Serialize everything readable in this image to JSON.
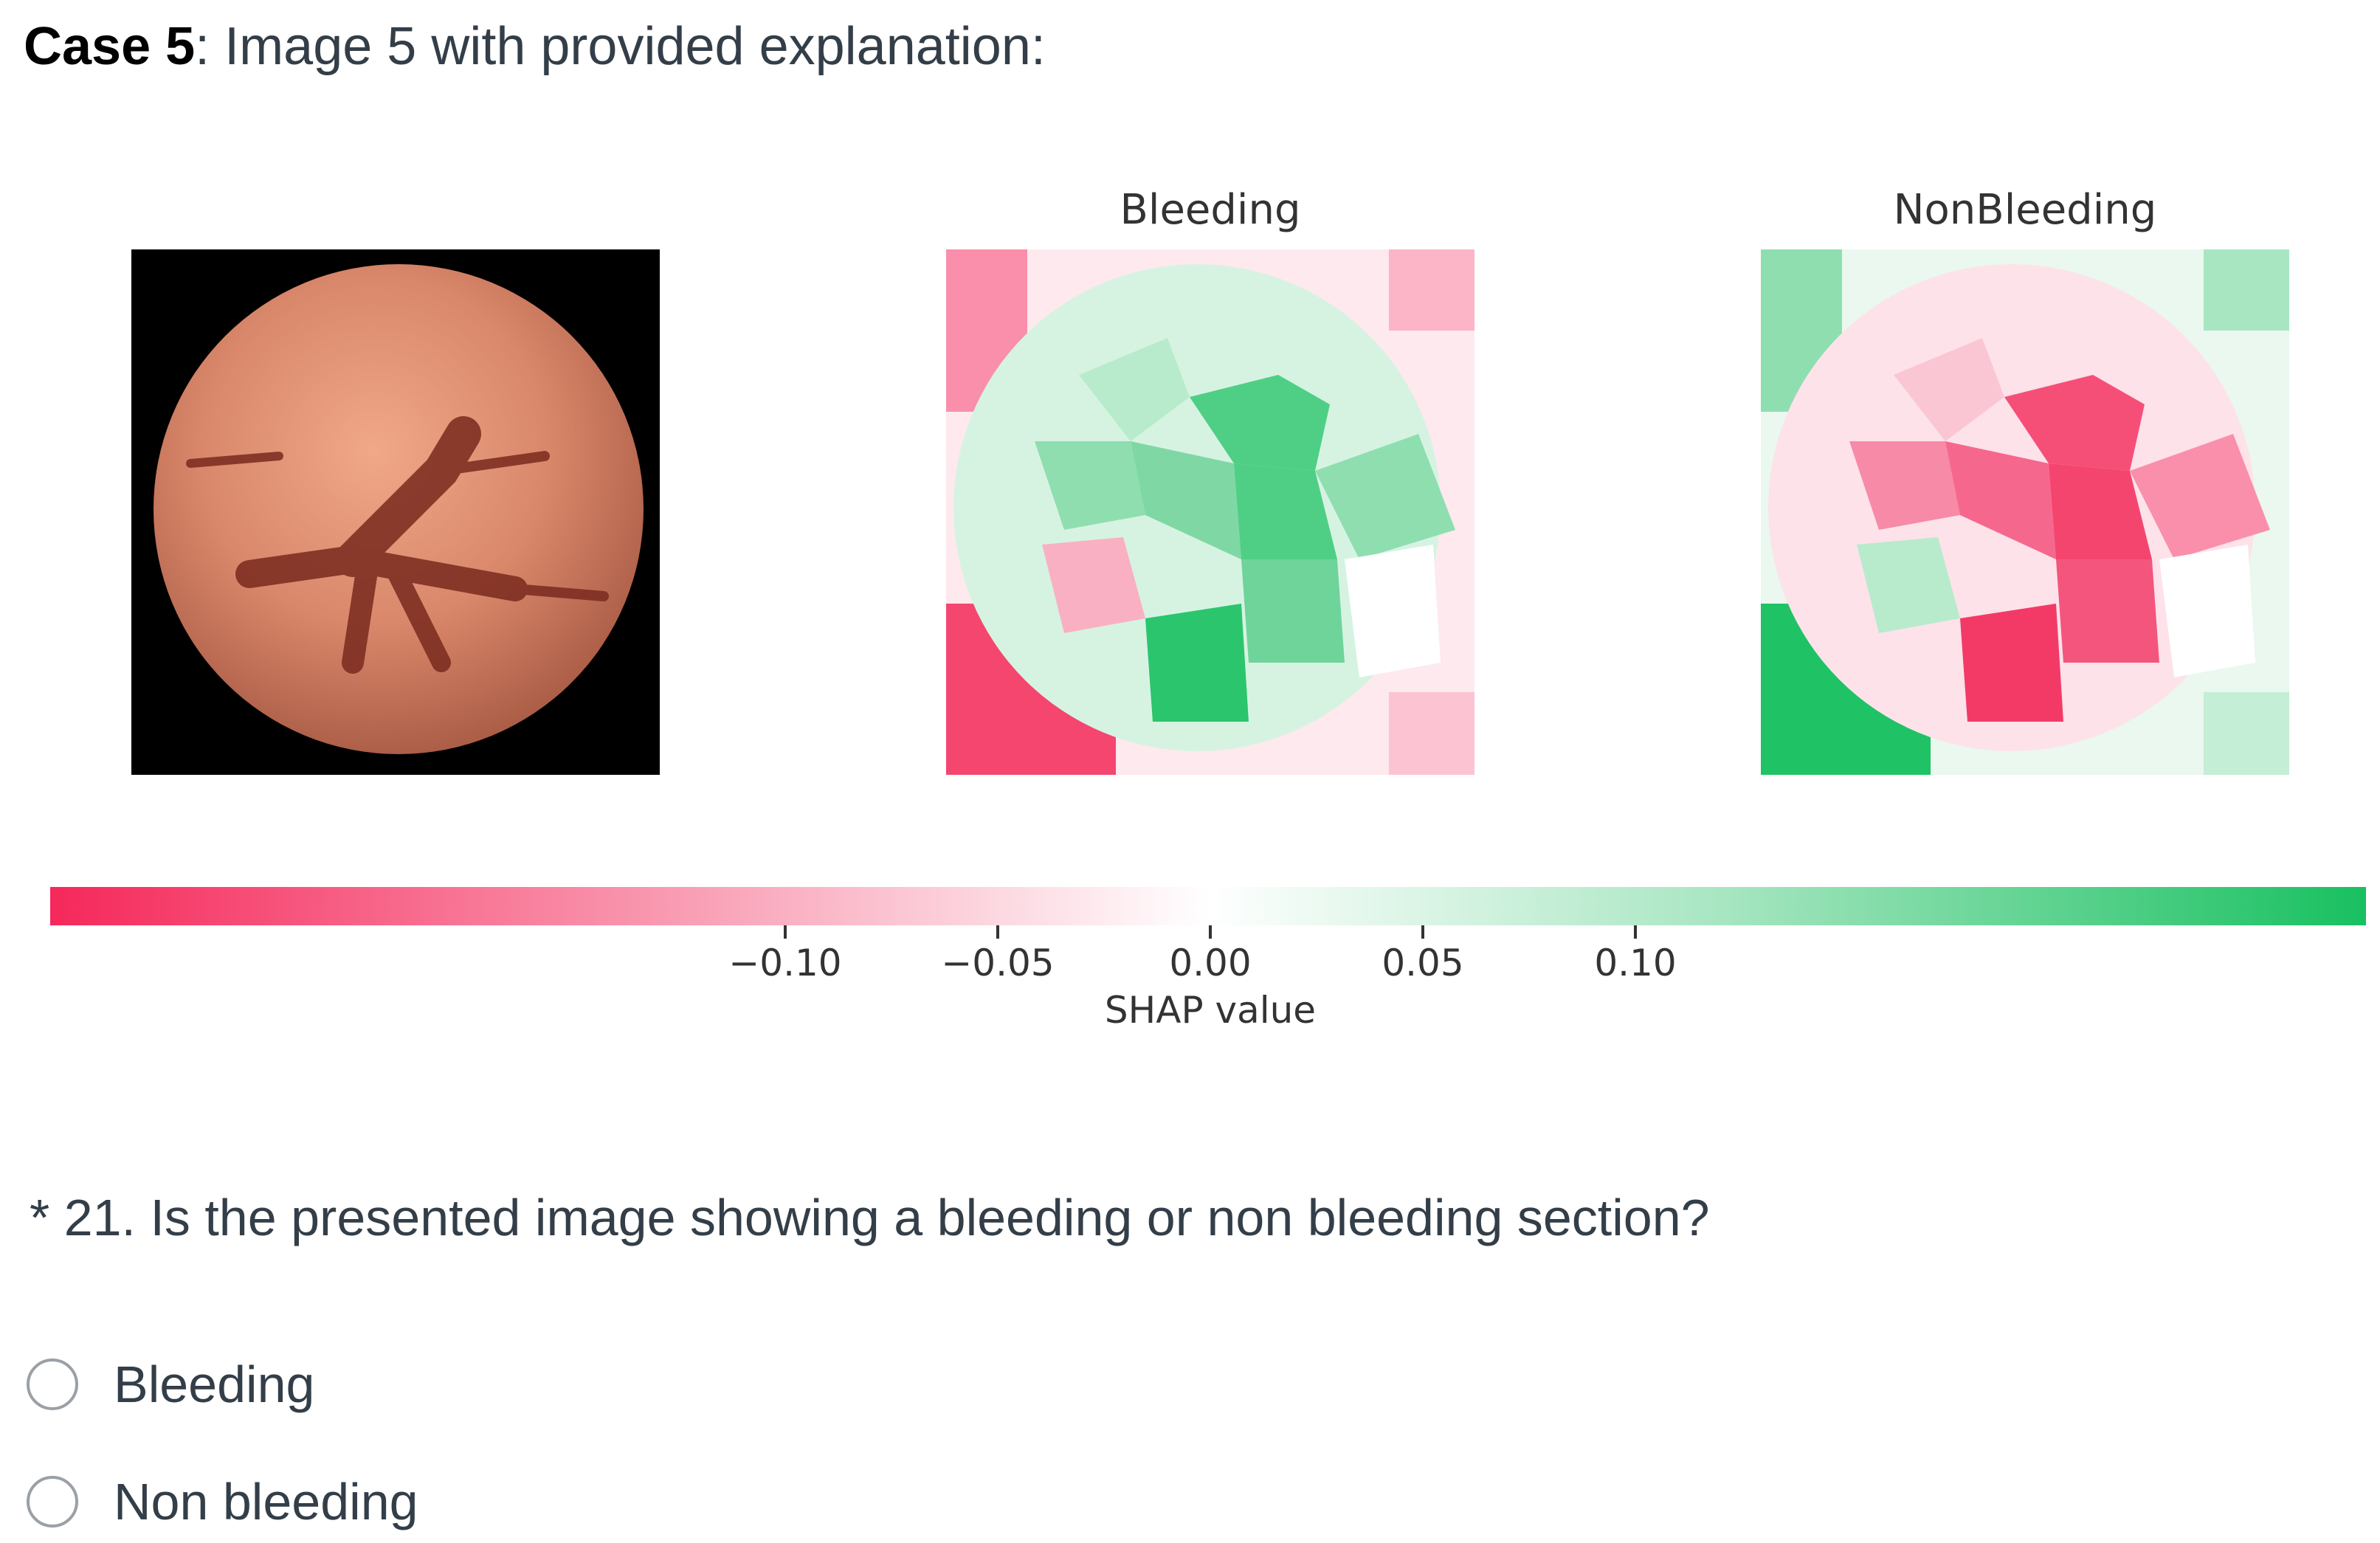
{
  "header": {
    "case_bold": "Case 5",
    "case_rest": ": Image 5 with provided explanation:"
  },
  "panels": {
    "bleeding_title": "Bleeding",
    "nonbleeding_title": "NonBleeding"
  },
  "colorbar": {
    "ticks": [
      "−0.10",
      "−0.05",
      "0.00",
      "0.05",
      "0.10"
    ],
    "tick_values": [
      -0.1,
      -0.05,
      0.0,
      0.05,
      0.1
    ],
    "axis_label": "SHAP value",
    "min_color": "#f5285a",
    "max_color": "#18c060"
  },
  "question": {
    "text": "* 21. Is the presented image showing a bleeding or non bleeding section?",
    "options": [
      "Bleeding",
      "Non bleeding"
    ]
  }
}
